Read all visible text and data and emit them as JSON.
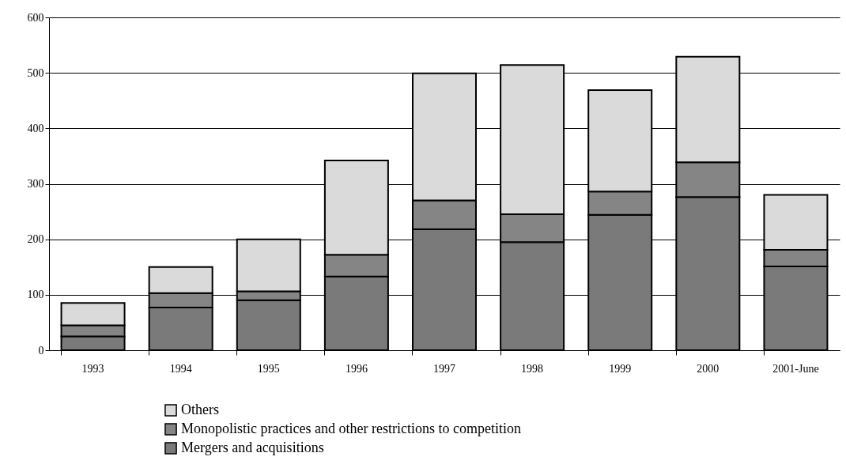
{
  "chart_data": {
    "type": "bar",
    "stacked": true,
    "categories": [
      "1993",
      "1994",
      "1995",
      "1996",
      "1997",
      "1998",
      "1999",
      "2000",
      "2001-June"
    ],
    "series": [
      {
        "name": "Mergers and acquisitions",
        "color": "#7a7a7a",
        "values": [
          25,
          77,
          90,
          133,
          218,
          195,
          244,
          276,
          151
        ]
      },
      {
        "name": "Monopolistic practices and other restrictions to  competition",
        "color": "#858585",
        "values": [
          20,
          26,
          16,
          39,
          52,
          50,
          42,
          63,
          30
        ]
      },
      {
        "name": "Others",
        "color": "#dadada",
        "values": [
          40,
          47,
          94,
          170,
          229,
          269,
          183,
          190,
          99
        ]
      }
    ],
    "ylim": [
      0,
      600
    ],
    "yticks": [
      0,
      100,
      200,
      300,
      400,
      500,
      600
    ],
    "grid": "y",
    "legend": "bottom"
  }
}
